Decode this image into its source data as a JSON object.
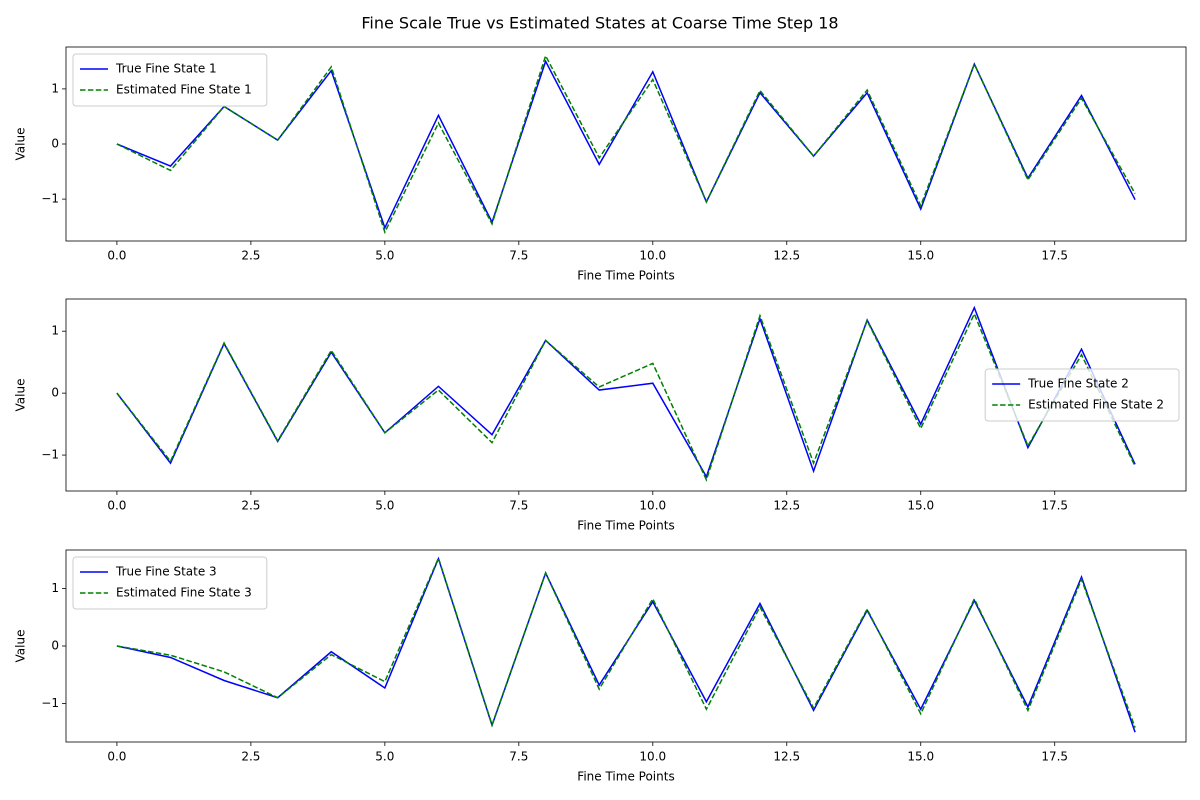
{
  "title": "Fine Scale True vs Estimated States at Coarse Time Step 18",
  "chart_data": [
    {
      "type": "line",
      "xlabel": "Fine Time Points",
      "ylabel": "Value",
      "x": [
        0,
        1,
        2,
        3,
        4,
        5,
        6,
        7,
        8,
        9,
        10,
        11,
        12,
        13,
        14,
        15,
        16,
        17,
        18,
        19
      ],
      "xlim": [
        -0.95,
        19.95
      ],
      "xticks": [
        {
          "value": 0,
          "label": "0.0"
        },
        2.5,
        {
          "value": 5,
          "label": "5.0"
        },
        7.5,
        {
          "value": 10,
          "label": "10.0"
        },
        12.5,
        {
          "value": 15,
          "label": "15.0"
        },
        17.5
      ],
      "ylim": [
        -1.76,
        1.76
      ],
      "yticks": [
        {
          "value": -1,
          "label": "−1"
        },
        0,
        1
      ],
      "grid": false,
      "legend": "upper left",
      "series": [
        {
          "name": "True Fine State 1",
          "color": "#0000ff",
          "linestyle": "solid",
          "values": [
            0,
            -0.4,
            0.68,
            0.07,
            1.33,
            -1.52,
            0.52,
            -1.42,
            1.5,
            -0.37,
            1.31,
            -1.05,
            0.93,
            -0.22,
            0.93,
            -1.18,
            1.45,
            -0.62,
            0.88,
            -1.01
          ]
        },
        {
          "name": "Estimated Fine State 1",
          "color": "#008000",
          "linestyle": "dashed",
          "values": [
            0,
            -0.48,
            0.68,
            0.07,
            1.4,
            -1.6,
            0.38,
            -1.45,
            1.6,
            -0.25,
            1.17,
            -1.05,
            0.97,
            -0.22,
            0.98,
            -1.12,
            1.45,
            -0.65,
            0.83,
            -0.9
          ]
        }
      ]
    },
    {
      "type": "line",
      "xlabel": "Fine Time Points",
      "ylabel": "Value",
      "x": [
        0,
        1,
        2,
        3,
        4,
        5,
        6,
        7,
        8,
        9,
        10,
        11,
        12,
        13,
        14,
        15,
        16,
        17,
        18,
        19
      ],
      "xlim": [
        -0.95,
        19.95
      ],
      "xticks": [
        {
          "value": 0,
          "label": "0.0"
        },
        2.5,
        {
          "value": 5,
          "label": "5.0"
        },
        7.5,
        {
          "value": 10,
          "label": "10.0"
        },
        12.5,
        {
          "value": 15,
          "label": "15.0"
        },
        17.5
      ],
      "ylim": [
        -1.58,
        1.52
      ],
      "yticks": [
        {
          "value": -1,
          "label": "−1"
        },
        0,
        1
      ],
      "grid": false,
      "legend": "center right",
      "series": [
        {
          "name": "True Fine State 2",
          "color": "#0000ff",
          "linestyle": "solid",
          "values": [
            0,
            -1.13,
            0.8,
            -0.78,
            0.66,
            -0.64,
            0.11,
            -0.67,
            0.85,
            0.05,
            0.16,
            -1.35,
            1.2,
            -1.26,
            1.18,
            -0.5,
            1.38,
            -0.88,
            0.71,
            -1.15
          ]
        },
        {
          "name": "Estimated Fine State 2",
          "color": "#008000",
          "linestyle": "dashed",
          "values": [
            0,
            -1.1,
            0.81,
            -0.77,
            0.69,
            -0.64,
            0.05,
            -0.8,
            0.85,
            0.1,
            0.48,
            -1.4,
            1.25,
            -1.13,
            1.17,
            -0.57,
            1.28,
            -0.85,
            0.62,
            -1.18
          ]
        }
      ]
    },
    {
      "type": "line",
      "xlabel": "Fine Time Points",
      "ylabel": "Value",
      "x": [
        0,
        1,
        2,
        3,
        4,
        5,
        6,
        7,
        8,
        9,
        10,
        11,
        12,
        13,
        14,
        15,
        16,
        17,
        18,
        19
      ],
      "xlim": [
        -0.95,
        19.95
      ],
      "xticks": [
        {
          "value": 0,
          "label": "0.0"
        },
        2.5,
        {
          "value": 5,
          "label": "5.0"
        },
        7.5,
        {
          "value": 10,
          "label": "10.0"
        },
        12.5,
        {
          "value": 15,
          "label": "15.0"
        },
        17.5
      ],
      "ylim": [
        -1.67,
        1.67
      ],
      "yticks": [
        {
          "value": -1,
          "label": "−1"
        },
        0,
        1
      ],
      "grid": false,
      "legend": "upper left",
      "series": [
        {
          "name": "True Fine State 3",
          "color": "#0000ff",
          "linestyle": "solid",
          "values": [
            0,
            -0.2,
            -0.6,
            -0.9,
            -0.1,
            -0.73,
            1.52,
            -1.38,
            1.27,
            -0.68,
            0.77,
            -0.97,
            0.74,
            -1.12,
            0.62,
            -1.1,
            0.79,
            -1.06,
            1.2,
            -1.5
          ]
        },
        {
          "name": "Estimated Fine State 3",
          "color": "#008000",
          "linestyle": "dashed",
          "values": [
            0,
            -0.16,
            -0.45,
            -0.9,
            -0.15,
            -0.62,
            1.53,
            -1.37,
            1.27,
            -0.75,
            0.82,
            -1.1,
            0.68,
            -1.08,
            0.64,
            -1.18,
            0.82,
            -1.12,
            1.16,
            -1.42
          ]
        }
      ]
    }
  ]
}
